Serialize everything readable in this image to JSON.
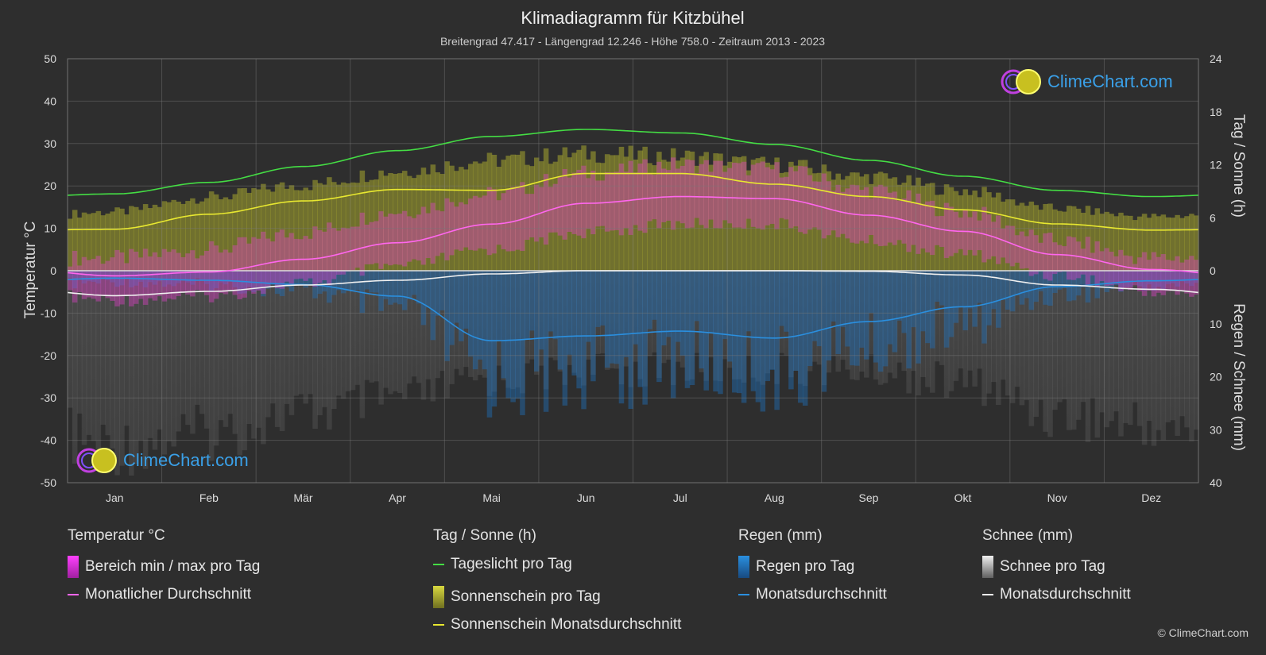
{
  "title": "Klimadiagramm für Kitzbühel",
  "subtitle": "Breitengrad 47.417 - Längengrad 12.246 - Höhe 758.0 - Zeitraum 2013 - 2023",
  "logo_text": "ClimeChart.com",
  "copyright": "© ClimeChart.com",
  "colors": {
    "background": "#2e2e2e",
    "daylight": "#44dd44",
    "sunshine_avg": "#e8e830",
    "temp_avg": "#ff66ee",
    "rain_avg": "#2a8fdf",
    "snow_avg": "#f0f0f0",
    "temp_range": "#e040c8",
    "sunshine_bar": "#a8a830",
    "rain_bar": "#1f6fb8",
    "snow_bar": "#8a8a8a"
  },
  "legend": {
    "temp": {
      "title": "Temperatur °C",
      "range": "Bereich min / max pro Tag",
      "avg": "Monatlicher Durchschnitt"
    },
    "sun": {
      "title": "Tag / Sonne (h)",
      "daylight": "Tageslicht pro Tag",
      "sunshine": "Sonnenschein pro Tag",
      "sunshine_avg": "Sonnenschein Monatsdurchschnitt"
    },
    "rain": {
      "title": "Regen (mm)",
      "rain": "Regen pro Tag",
      "avg": "Monatsdurchschnitt"
    },
    "snow": {
      "title": "Schnee (mm)",
      "snow": "Schnee pro Tag",
      "avg": "Monatsdurchschnitt"
    }
  },
  "chart_data": {
    "type": "line",
    "categories": [
      "Jan",
      "Feb",
      "Mär",
      "Apr",
      "Mai",
      "Jun",
      "Jul",
      "Aug",
      "Sep",
      "Okt",
      "Nov",
      "Dez"
    ],
    "left_axis": {
      "label": "Temperatur °C",
      "range": [
        -50,
        50
      ],
      "ticks": [
        50,
        40,
        30,
        20,
        10,
        0,
        -10,
        -20,
        -30,
        -40,
        -50
      ]
    },
    "right_axis_top": {
      "label": "Tag / Sonne (h)",
      "range": [
        0,
        24
      ],
      "ticks": [
        24,
        18,
        12,
        6,
        0
      ]
    },
    "right_axis_bottom": {
      "label": "Regen / Schnee (mm)",
      "range": [
        0,
        40
      ],
      "ticks": [
        10,
        20,
        30,
        40
      ]
    },
    "grid": true,
    "series": [
      {
        "name": "Tageslicht pro Tag",
        "axis": "hours",
        "values": [
          8.7,
          10.0,
          11.8,
          13.6,
          15.2,
          16.0,
          15.6,
          14.3,
          12.5,
          10.7,
          9.1,
          8.4
        ]
      },
      {
        "name": "Sonnenschein Monatsdurchschnitt",
        "axis": "hours",
        "values": [
          4.7,
          6.4,
          7.9,
          9.2,
          9.1,
          11.0,
          11.0,
          9.8,
          8.4,
          6.9,
          5.3,
          4.6
        ]
      },
      {
        "name": "Monatlicher Durchschnitt",
        "axis": "temp",
        "values": [
          -1.2,
          -0.3,
          2.7,
          6.6,
          11.0,
          15.9,
          17.5,
          17.0,
          13.1,
          9.3,
          3.8,
          0.3
        ]
      },
      {
        "name": "Regen Monatsdurchschnitt",
        "axis": "precip",
        "values": [
          1.4,
          1.8,
          2.6,
          4.8,
          13.2,
          12.3,
          11.4,
          12.7,
          9.6,
          6.8,
          3.0,
          1.9
        ]
      },
      {
        "name": "Schnee Monatsdurchschnitt",
        "axis": "precip",
        "values": [
          4.7,
          3.9,
          2.7,
          1.8,
          0.6,
          0.0,
          0.0,
          0.0,
          0.1,
          0.8,
          2.7,
          3.5
        ]
      }
    ],
    "temp_range_daily": {
      "max": [
        3,
        5,
        9,
        14,
        18,
        23,
        25,
        24,
        19,
        14,
        7,
        3
      ],
      "min": [
        -7,
        -6,
        -3,
        1,
        5,
        9,
        11,
        11,
        7,
        4,
        -1,
        -5
      ]
    },
    "sunshine_daily_max": [
      7.2,
      9.0,
      10.5,
      12.2,
      13.5,
      14.3,
      14.0,
      13.0,
      11.5,
      9.8,
      7.6,
      6.6
    ]
  }
}
